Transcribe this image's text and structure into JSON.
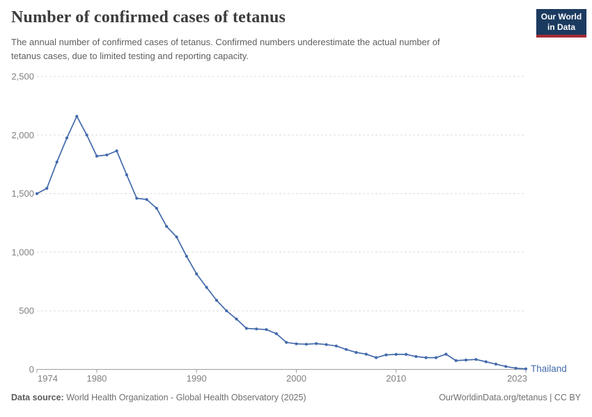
{
  "header": {
    "title": "Number of confirmed cases of tetanus",
    "subtitle": "The annual number of confirmed cases of tetanus. Confirmed numbers underestimate the actual number of tetanus cases, due to limited testing and reporting capacity.",
    "logo": {
      "line1": "Our World",
      "line2": "in Data"
    }
  },
  "chart_data": {
    "type": "line",
    "title": "Number of confirmed cases of tetanus",
    "xlabel": "",
    "ylabel": "",
    "xlim": [
      1974,
      2023
    ],
    "ylim": [
      0,
      2500
    ],
    "grid": "horizontal-dashed",
    "legend_position": "end-of-line-label",
    "x_ticks": [
      1974,
      1980,
      1990,
      2000,
      2010,
      2023
    ],
    "y_ticks": [
      0,
      500,
      1000,
      1500,
      2000,
      2500
    ],
    "y_tick_labels": [
      "0",
      "500",
      "1,000",
      "1,500",
      "2,000",
      "2,500"
    ],
    "series": [
      {
        "name": "Thailand",
        "color": "#4269ab",
        "x": [
          1974,
          1975,
          1976,
          1977,
          1978,
          1979,
          1980,
          1981,
          1982,
          1983,
          1984,
          1985,
          1986,
          1987,
          1988,
          1989,
          1990,
          1991,
          1992,
          1993,
          1994,
          1995,
          1996,
          1997,
          1998,
          1999,
          2000,
          2001,
          2002,
          2003,
          2004,
          2005,
          2006,
          2007,
          2008,
          2009,
          2010,
          2011,
          2012,
          2013,
          2014,
          2015,
          2016,
          2017,
          2018,
          2019,
          2020,
          2021,
          2022,
          2023
        ],
        "values": [
          1500,
          1545,
          1770,
          1975,
          2160,
          2000,
          1820,
          1830,
          1865,
          1660,
          1460,
          1450,
          1375,
          1220,
          1130,
          965,
          815,
          700,
          590,
          500,
          430,
          350,
          345,
          340,
          305,
          230,
          218,
          215,
          220,
          212,
          200,
          170,
          145,
          130,
          100,
          124,
          128,
          128,
          110,
          100,
          100,
          130,
          75,
          80,
          85,
          65,
          45,
          25,
          10,
          5
        ]
      }
    ]
  },
  "footer": {
    "source_label": "Data source:",
    "source_text": "World Health Organization - Global Health Observatory (2025)",
    "credit": "OurWorldinData.org/tetanus | CC BY"
  },
  "colors": {
    "line": "#4269ab",
    "axis_text": "#7f7f7f",
    "gridline": "#dcdcdc",
    "axis_line": "#9e9e9e"
  }
}
